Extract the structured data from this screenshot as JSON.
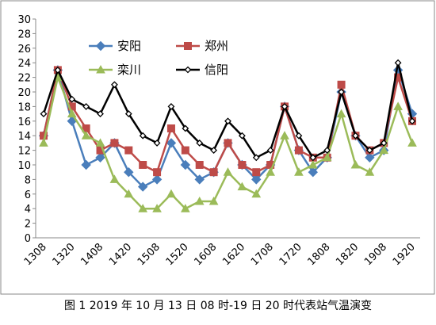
{
  "chart_data": {
    "type": "line",
    "caption": "图 1 2019 年 10 月 13 日 08 时-19 日 20 时代表站气温演变",
    "categories": [
      "1308",
      null,
      "1320",
      null,
      "1408",
      null,
      "1420",
      null,
      "1508",
      null,
      "1520",
      null,
      "1608",
      null,
      "1620",
      null,
      "1708",
      null,
      "1720",
      null,
      "1808",
      null,
      "1820",
      null,
      "1908",
      null,
      "1920"
    ],
    "series": [
      {
        "name": "安阳",
        "color": "#4a7ebb",
        "marker": "diamond",
        "values": [
          14,
          23,
          16,
          10,
          11,
          13,
          9,
          7,
          8,
          13,
          10,
          8,
          9,
          13,
          10,
          8,
          10,
          18,
          12,
          9,
          11,
          20,
          14,
          11,
          12,
          23,
          17
        ]
      },
      {
        "name": "郑州",
        "color": "#be4b48",
        "marker": "square",
        "values": [
          14,
          23,
          18,
          15,
          12,
          13,
          12,
          10,
          9,
          15,
          12,
          10,
          9,
          13,
          10,
          9,
          10,
          18,
          12,
          11,
          11,
          21,
          14,
          12,
          13,
          22,
          16
        ]
      },
      {
        "name": "栾川",
        "color": "#9bbb59",
        "marker": "triangle",
        "values": [
          13,
          22,
          17,
          14,
          13,
          8,
          6,
          4,
          4,
          6,
          4,
          5,
          5,
          9,
          7,
          6,
          9,
          14,
          9,
          10,
          11,
          17,
          10,
          9,
          12,
          18,
          13
        ]
      },
      {
        "name": "信阳",
        "color": "#000000",
        "marker": "small-diamond",
        "values": [
          17,
          23,
          19,
          18,
          17,
          21,
          17,
          14,
          13,
          18,
          15,
          13,
          12,
          16,
          14,
          11,
          12,
          18,
          14,
          11,
          12,
          20,
          14,
          12,
          13,
          24,
          16
        ]
      }
    ],
    "ylim": [
      0,
      30
    ],
    "yticks": [
      0,
      2,
      4,
      6,
      8,
      10,
      12,
      14,
      16,
      18,
      20,
      22,
      24,
      26,
      28,
      30
    ],
    "grid": false
  }
}
